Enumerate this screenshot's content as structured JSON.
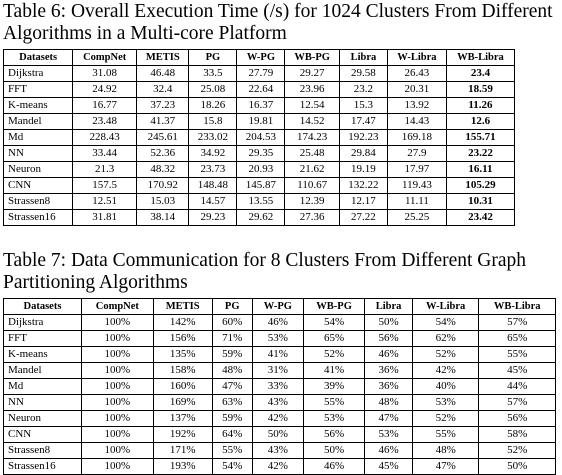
{
  "tables": [
    {
      "caption": "Table 6:  Overall Execution Time (/s) for 1024 Clusters From Different Algorithms in a Multi-core Platform",
      "header": [
        "Datasets",
        "CompNet",
        "METIS",
        "PG",
        "W-PG",
        "WB-PG",
        "Libra",
        "W-Libra",
        "WB-Libra"
      ],
      "rows": [
        [
          "Dijkstra",
          "31.08",
          "46.48",
          "33.5",
          "27.79",
          "29.27",
          "29.58",
          "26.43",
          "23.4"
        ],
        [
          "FFT",
          "24.92",
          "32.4",
          "25.08",
          "22.64",
          "23.96",
          "23.2",
          "20.31",
          "18.59"
        ],
        [
          "K-means",
          "16.77",
          "37.23",
          "18.26",
          "16.37",
          "12.54",
          "15.3",
          "13.92",
          "11.26"
        ],
        [
          "Mandel",
          "23.48",
          "41.37",
          "15.8",
          "19.81",
          "14.52",
          "17.47",
          "14.43",
          "12.6"
        ],
        [
          "Md",
          "228.43",
          "245.61",
          "233.02",
          "204.53",
          "174.23",
          "192.23",
          "169.18",
          "155.71"
        ],
        [
          "NN",
          "33.44",
          "52.36",
          "34.92",
          "29.35",
          "25.48",
          "29.84",
          "27.9",
          "23.22"
        ],
        [
          "Neuron",
          "21.3",
          "48.32",
          "23.73",
          "20.93",
          "21.62",
          "19.19",
          "17.97",
          "16.11"
        ],
        [
          "CNN",
          "157.5",
          "170.92",
          "148.48",
          "145.87",
          "110.67",
          "132.22",
          "119.43",
          "105.29"
        ],
        [
          "Strassen8",
          "12.51",
          "15.03",
          "14.57",
          "13.55",
          "12.39",
          "12.17",
          "11.11",
          "10.31"
        ],
        [
          "Strassen16",
          "31.81",
          "38.14",
          "29.23",
          "29.62",
          "27.36",
          "27.22",
          "25.25",
          "23.42"
        ]
      ]
    },
    {
      "caption": "Table 7: Data Communication for 8 Clusters From Different Graph Partitioning Algorithms",
      "header": [
        "Datasets",
        "CompNet",
        "METIS",
        "PG",
        "W-PG",
        "WB-PG",
        "Libra",
        "W-Libra",
        "WB-Libra"
      ],
      "rows": [
        [
          "Dijkstra",
          "100%",
          "142%",
          "60%",
          "46%",
          "54%",
          "50%",
          "54%",
          "57%"
        ],
        [
          "FFT",
          "100%",
          "156%",
          "71%",
          "53%",
          "65%",
          "56%",
          "62%",
          "65%"
        ],
        [
          "K-means",
          "100%",
          "135%",
          "59%",
          "41%",
          "52%",
          "46%",
          "52%",
          "55%"
        ],
        [
          "Mandel",
          "100%",
          "158%",
          "48%",
          "31%",
          "41%",
          "36%",
          "42%",
          "45%"
        ],
        [
          "Md",
          "100%",
          "160%",
          "47%",
          "33%",
          "39%",
          "36%",
          "40%",
          "44%"
        ],
        [
          "NN",
          "100%",
          "169%",
          "63%",
          "43%",
          "55%",
          "48%",
          "53%",
          "57%"
        ],
        [
          "Neuron",
          "100%",
          "137%",
          "59%",
          "42%",
          "53%",
          "47%",
          "52%",
          "56%"
        ],
        [
          "CNN",
          "100%",
          "192%",
          "64%",
          "50%",
          "56%",
          "53%",
          "55%",
          "58%"
        ],
        [
          "Strassen8",
          "100%",
          "171%",
          "55%",
          "43%",
          "50%",
          "46%",
          "48%",
          "52%"
        ],
        [
          "Strassen16",
          "100%",
          "193%",
          "54%",
          "42%",
          "46%",
          "45%",
          "47%",
          "50%"
        ]
      ]
    }
  ]
}
